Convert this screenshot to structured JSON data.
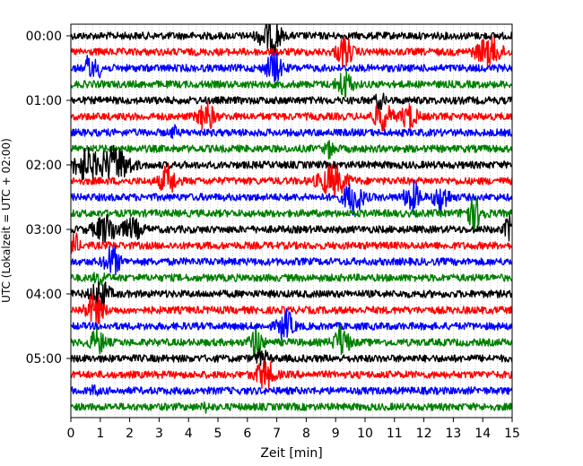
{
  "chart_data": {
    "type": "line",
    "title": "",
    "xlabel": "Zeit  [min]",
    "ylabel": "UTC (Lokalzeit = UTC + 02:00)",
    "xlim": [
      0,
      15
    ],
    "x_ticks": [
      "0",
      "1",
      "2",
      "3",
      "4",
      "5",
      "6",
      "7",
      "8",
      "9",
      "10",
      "11",
      "12",
      "13",
      "14",
      "15"
    ],
    "y_ticks": [
      "00:00",
      "01:00",
      "02:00",
      "03:00",
      "04:00",
      "05:00"
    ],
    "grid": "vertical dotted minor lines",
    "legend": "none",
    "trace_interval_minutes": 15,
    "series_colors": [
      "#000000",
      "#ff0000",
      "#0000ff",
      "#008000"
    ],
    "traces": [
      {
        "start": "00:00",
        "color": "#000000",
        "bursts": [
          {
            "t": 6.7,
            "amp": 1.6,
            "dur": 0.6
          },
          {
            "t": 7.0,
            "amp": 1.2,
            "dur": 0.3
          }
        ]
      },
      {
        "start": "00:15",
        "color": "#ff0000",
        "bursts": [
          {
            "t": 9.3,
            "amp": 1.6,
            "dur": 0.5
          },
          {
            "t": 14.2,
            "amp": 1.5,
            "dur": 0.8
          }
        ]
      },
      {
        "start": "00:30",
        "color": "#0000ff",
        "bursts": [
          {
            "t": 0.6,
            "amp": 1.8,
            "dur": 0.15
          },
          {
            "t": 0.9,
            "amp": 0.8,
            "dur": 0.4
          },
          {
            "t": 6.9,
            "amp": 1.6,
            "dur": 0.5
          }
        ]
      },
      {
        "start": "00:45",
        "color": "#008000",
        "bursts": [
          {
            "t": 9.3,
            "amp": 1.4,
            "dur": 0.5
          }
        ]
      },
      {
        "start": "01:00",
        "color": "#000000",
        "bursts": [
          {
            "t": 10.5,
            "amp": 0.8,
            "dur": 0.3
          }
        ]
      },
      {
        "start": "01:15",
        "color": "#ff0000",
        "bursts": [
          {
            "t": 4.6,
            "amp": 1.6,
            "dur": 0.5
          },
          {
            "t": 10.6,
            "amp": 1.4,
            "dur": 0.6
          },
          {
            "t": 11.5,
            "amp": 1.3,
            "dur": 0.5
          }
        ]
      },
      {
        "start": "01:30",
        "color": "#0000ff",
        "bursts": [
          {
            "t": 3.5,
            "amp": 0.6,
            "dur": 0.2
          }
        ]
      },
      {
        "start": "01:45",
        "color": "#008000",
        "bursts": [
          {
            "t": 8.8,
            "amp": 0.8,
            "dur": 0.3
          }
        ]
      },
      {
        "start": "02:00",
        "color": "#000000",
        "bursts": [
          {
            "t": 0.5,
            "amp": 1.6,
            "dur": 0.8
          },
          {
            "t": 1.5,
            "amp": 1.8,
            "dur": 1.0
          }
        ]
      },
      {
        "start": "02:15",
        "color": "#ff0000",
        "bursts": [
          {
            "t": 3.3,
            "amp": 1.6,
            "dur": 0.5
          },
          {
            "t": 8.9,
            "amp": 1.6,
            "dur": 0.9
          }
        ]
      },
      {
        "start": "02:30",
        "color": "#0000ff",
        "bursts": [
          {
            "t": 9.6,
            "amp": 1.8,
            "dur": 0.6
          },
          {
            "t": 11.6,
            "amp": 1.6,
            "dur": 0.5
          },
          {
            "t": 12.6,
            "amp": 1.4,
            "dur": 0.5
          }
        ]
      },
      {
        "start": "02:45",
        "color": "#008000",
        "bursts": [
          {
            "t": 13.7,
            "amp": 1.5,
            "dur": 0.6
          }
        ]
      },
      {
        "start": "03:00",
        "color": "#000000",
        "bursts": [
          {
            "t": 1.2,
            "amp": 1.4,
            "dur": 0.8
          },
          {
            "t": 2.1,
            "amp": 1.0,
            "dur": 0.6
          },
          {
            "t": 14.9,
            "amp": 1.3,
            "dur": 0.3
          }
        ]
      },
      {
        "start": "03:15",
        "color": "#ff0000",
        "bursts": [
          {
            "t": 0.1,
            "amp": 1.4,
            "dur": 0.3
          }
        ]
      },
      {
        "start": "03:30",
        "color": "#0000ff",
        "bursts": [
          {
            "t": 1.4,
            "amp": 1.6,
            "dur": 0.5
          }
        ]
      },
      {
        "start": "03:45",
        "color": "#008000",
        "bursts": [
          {
            "t": 1.0,
            "amp": 0.6,
            "dur": 0.4
          }
        ]
      },
      {
        "start": "04:00",
        "color": "#000000",
        "bursts": [
          {
            "t": 1.0,
            "amp": 1.4,
            "dur": 0.6
          }
        ]
      },
      {
        "start": "04:15",
        "color": "#ff0000",
        "bursts": [
          {
            "t": 0.8,
            "amp": 1.5,
            "dur": 0.6
          }
        ]
      },
      {
        "start": "04:30",
        "color": "#0000ff",
        "bursts": [
          {
            "t": 7.3,
            "amp": 1.6,
            "dur": 0.5
          }
        ]
      },
      {
        "start": "04:45",
        "color": "#008000",
        "bursts": [
          {
            "t": 0.9,
            "amp": 1.2,
            "dur": 0.5
          },
          {
            "t": 6.3,
            "amp": 1.6,
            "dur": 0.4
          },
          {
            "t": 9.2,
            "amp": 1.6,
            "dur": 0.5
          }
        ]
      },
      {
        "start": "05:00",
        "color": "#000000",
        "bursts": [
          {
            "t": 6.5,
            "amp": 0.8,
            "dur": 0.4
          }
        ]
      },
      {
        "start": "05:15",
        "color": "#ff0000",
        "bursts": [
          {
            "t": 6.6,
            "amp": 1.5,
            "dur": 0.6
          }
        ]
      },
      {
        "start": "05:30",
        "color": "#0000ff",
        "bursts": [
          {
            "t": 0.8,
            "amp": 0.5,
            "dur": 0.2
          }
        ]
      },
      {
        "start": "05:45",
        "color": "#008000",
        "bursts": [
          {
            "t": 4.6,
            "amp": 0.4,
            "dur": 0.2
          }
        ]
      }
    ]
  }
}
